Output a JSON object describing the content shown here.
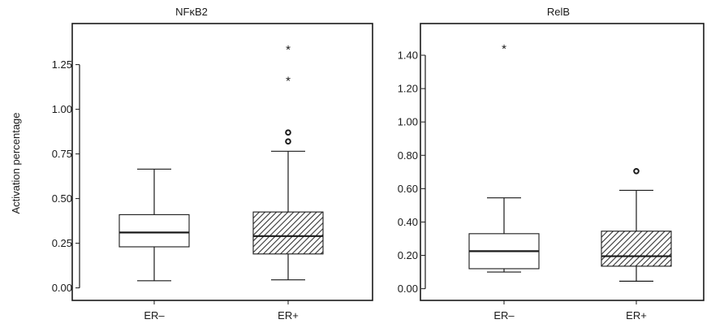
{
  "chart_data": [
    {
      "type": "box",
      "title": "NFκB2",
      "ylabel": "Activation percentage",
      "ylim": [
        -0.07,
        1.48
      ],
      "yticks": [
        "0.00",
        "0.25",
        "0.50",
        "0.75",
        "1.00",
        "1.25"
      ],
      "ytick_values": [
        0,
        0.25,
        0.5,
        0.75,
        1.0,
        1.25
      ],
      "categories": [
        "ER–",
        "ER+"
      ],
      "boxes": [
        {
          "category": "ER–",
          "fill": "none",
          "whisker_low": 0.04,
          "q1": 0.23,
          "median": 0.31,
          "q3": 0.41,
          "whisker_high": 0.665,
          "outliers": []
        },
        {
          "category": "ER+",
          "fill": "hatched",
          "whisker_low": 0.045,
          "q1": 0.19,
          "median": 0.29,
          "q3": 0.425,
          "whisker_high": 0.765,
          "outliers": [
            {
              "value": 0.82,
              "symbol": "circle"
            },
            {
              "value": 0.87,
              "symbol": "circle"
            },
            {
              "value": 1.165,
              "symbol": "star",
              "label": "*"
            },
            {
              "value": 1.34,
              "symbol": "star",
              "label": "*"
            }
          ]
        }
      ]
    },
    {
      "type": "box",
      "title": "RelB",
      "ylabel": "",
      "ylim": [
        -0.07,
        1.59
      ],
      "yticks": [
        "0.00",
        "0.20",
        "0.40",
        "0.60",
        "0.80",
        "1.00",
        "1.20",
        "1.40"
      ],
      "ytick_values": [
        0,
        0.2,
        0.4,
        0.6,
        0.8,
        1.0,
        1.2,
        1.4
      ],
      "categories": [
        "ER–",
        "ER+"
      ],
      "boxes": [
        {
          "category": "ER–",
          "fill": "none",
          "whisker_low": 0.1,
          "q1": 0.12,
          "median": 0.225,
          "q3": 0.33,
          "whisker_high": 0.545,
          "outliers": [
            {
              "value": 1.445,
              "symbol": "star",
              "label": "*"
            }
          ]
        },
        {
          "category": "ER+",
          "fill": "hatched",
          "whisker_low": 0.045,
          "q1": 0.135,
          "median": 0.195,
          "q3": 0.345,
          "whisker_high": 0.59,
          "outliers": [
            {
              "value": 0.705,
              "symbol": "circle"
            }
          ]
        }
      ]
    }
  ]
}
